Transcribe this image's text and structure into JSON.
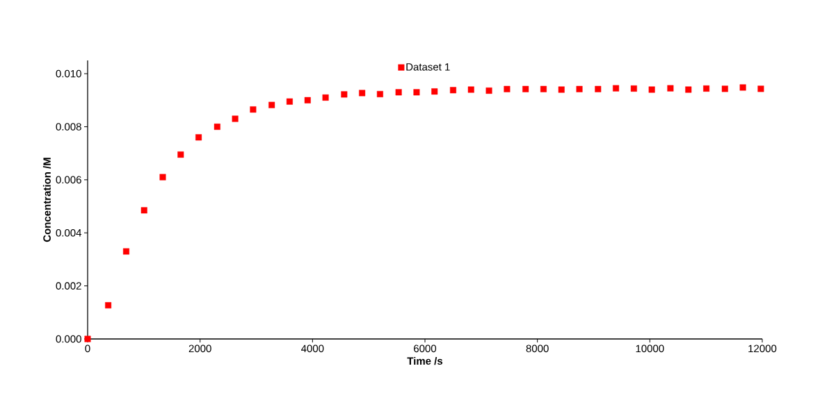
{
  "chart_data": {
    "type": "scatter",
    "xlabel": "Time /s",
    "ylabel": "Concentration /M",
    "series": [
      {
        "name": "Dataset 1",
        "color": "#ff0000",
        "x": [
          0,
          366,
          686,
          1005,
          1336,
          1655,
          1974,
          2305,
          2624,
          2943,
          3274,
          3593,
          3913,
          4232,
          4563,
          4882,
          5201,
          5532,
          5851,
          6170,
          6501,
          6820,
          7139,
          7459,
          7790,
          8109,
          8428,
          8747,
          9078,
          9397,
          9716,
          10035,
          10366,
          10686,
          11005,
          11336,
          11655,
          11974
        ],
        "values": [
          0.0,
          0.00127,
          0.0033,
          0.00485,
          0.0061,
          0.00695,
          0.0076,
          0.008,
          0.0083,
          0.00865,
          0.00882,
          0.00895,
          0.009,
          0.0091,
          0.00922,
          0.00927,
          0.00923,
          0.0093,
          0.0093,
          0.00933,
          0.00938,
          0.0094,
          0.00936,
          0.00942,
          0.00942,
          0.00942,
          0.0094,
          0.00942,
          0.00942,
          0.00945,
          0.00944,
          0.0094,
          0.00945,
          0.0094,
          0.00944,
          0.00943,
          0.00948,
          0.00943
        ]
      }
    ],
    "xlim": [
      0,
      12000
    ],
    "xticks": [
      0,
      2000,
      4000,
      6000,
      8000,
      10000,
      12000
    ],
    "ylim": [
      0,
      0.0105
    ],
    "yticks": [
      {
        "value": 0,
        "label": "0.000"
      },
      {
        "value": 0.002,
        "label": "0.002"
      },
      {
        "value": 0.004,
        "label": "0.004"
      },
      {
        "value": 0.006,
        "label": "0.006"
      },
      {
        "value": 0.008,
        "label": "0.008"
      },
      {
        "value": 0.01,
        "label": "0.010"
      }
    ],
    "marker": "square",
    "legend": "top",
    "grid": false
  }
}
